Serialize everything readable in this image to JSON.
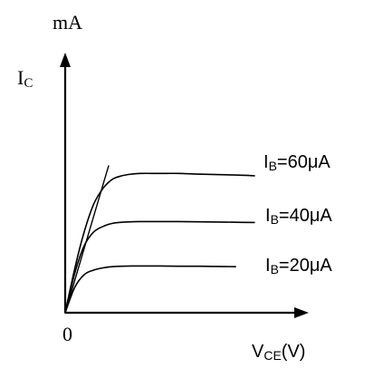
{
  "chart_data": {
    "type": "line",
    "title": "",
    "unit_label": "mA",
    "ylabel": {
      "main": "I",
      "sub": "C"
    },
    "xlabel": {
      "main": "V",
      "sub": "CE",
      "suffix": "(V)"
    },
    "origin_label": "0",
    "grid": false,
    "legend": "inline labels at right end of each curve",
    "xlim": [
      0,
      10
    ],
    "ylim": [
      0,
      10
    ],
    "series": [
      {
        "name": {
          "main": "I",
          "sub": "B",
          "suffix": "=60μA"
        },
        "x": [
          0,
          0.5,
          1.0,
          1.5,
          2.0,
          2.5,
          3.0,
          3.5,
          4.0,
          5.0,
          6.0,
          7.0,
          8.0,
          9.0,
          10.0
        ],
        "values": [
          0,
          1.9,
          3.5,
          4.7,
          5.4,
          5.8,
          5.95,
          6.02,
          6.05,
          6.05,
          6.05,
          6.02,
          6.0,
          5.98,
          5.95
        ]
      },
      {
        "name": {
          "main": "I",
          "sub": "B",
          "suffix": "=40μA"
        },
        "x": [
          0,
          0.5,
          1.0,
          1.5,
          2.0,
          2.5,
          3.0,
          3.5,
          4.0,
          5.0,
          6.0,
          7.0,
          8.0,
          9.0,
          10.0
        ],
        "values": [
          0,
          1.7,
          2.9,
          3.5,
          3.75,
          3.88,
          3.93,
          3.95,
          3.96,
          3.96,
          3.96,
          3.95,
          3.94,
          3.93,
          3.92
        ]
      },
      {
        "name": {
          "main": "I",
          "sub": "B",
          "suffix": "=20μA"
        },
        "x": [
          0,
          0.5,
          1.0,
          1.5,
          2.0,
          2.5,
          3.0,
          3.5,
          4.0,
          5.0,
          6.0,
          7.0,
          8.0,
          9.0
        ],
        "values": [
          0,
          1.1,
          1.65,
          1.85,
          1.95,
          2.0,
          2.02,
          2.03,
          2.03,
          2.03,
          2.02,
          2.02,
          2.01,
          2.0
        ]
      }
    ],
    "reference_line": {
      "x": [
        0,
        2.3
      ],
      "values": [
        0,
        6.4
      ]
    }
  }
}
